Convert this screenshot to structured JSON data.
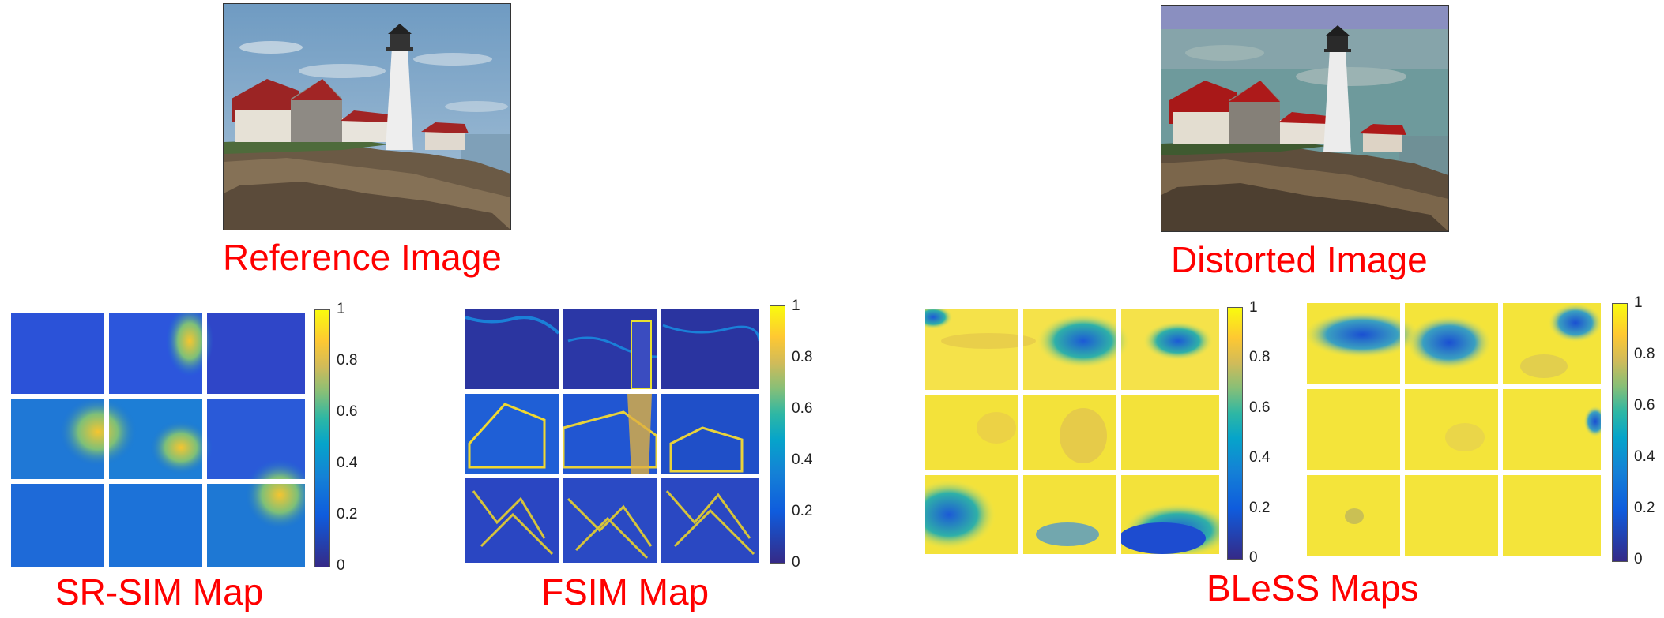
{
  "captions": {
    "reference": "Reference Image",
    "distorted": "Distorted Image",
    "srsim": "SR-SIM Map",
    "fsim": "FSIM Map",
    "bless": "BLeSS Maps"
  },
  "colorbar": {
    "colormap": "parula",
    "colors": [
      "#352a87",
      "#0f5cdd",
      "#1481d6",
      "#06a4ca",
      "#2eb7a4",
      "#87bf77",
      "#d1bb59",
      "#fec832",
      "#f9fb0e"
    ],
    "ticks_a": [
      "0",
      "0.2",
      "0.4",
      "0.6",
      "0.8",
      "1"
    ],
    "ticks_b": [
      "0",
      "0.2",
      "0.4",
      "0.6",
      "0.8",
      "1"
    ],
    "ticks_c": [
      "0",
      "0.2",
      "0.4",
      "0.6",
      "0.8",
      "1"
    ],
    "ticks_d": [
      "0",
      "0.2",
      "0.4",
      "0.6",
      "0.8",
      "1"
    ]
  },
  "colors": {
    "caption": "#ff0000",
    "sky": "#7fa7c8",
    "distorted_sky": "#6e9a9c",
    "roof": "#9b2424",
    "rock": "#6b5a45"
  }
}
